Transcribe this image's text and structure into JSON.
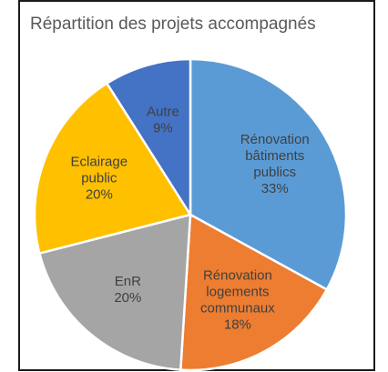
{
  "chart_data": {
    "type": "pie",
    "title": "Répartition des projets accompagnés",
    "categories": [
      "Rénovation bâtiments publics",
      "Rénovation logements communaux",
      "EnR",
      "Eclairage public",
      "Autre"
    ],
    "values": [
      33,
      18,
      20,
      20,
      9
    ],
    "value_labels": [
      "33%",
      "18%",
      "20%",
      "20%",
      "9%"
    ],
    "colors": [
      "#5b9bd5",
      "#ed7d31",
      "#a5a5a5",
      "#ffc000",
      "#4472c4"
    ]
  }
}
